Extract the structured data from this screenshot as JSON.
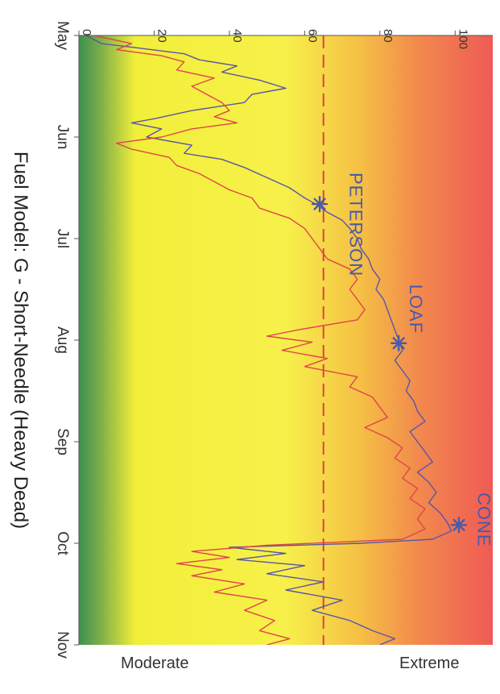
{
  "chart_data": {
    "type": "line",
    "title": "Fuel Model: G - Short-Needle (Heavy Dead)",
    "x_label": "",
    "y_label": "",
    "x_ticks": [
      "May",
      "Jun",
      "Jul",
      "Aug",
      "Sep",
      "Oct",
      "Nov"
    ],
    "y_ticks": [
      0,
      20,
      40,
      60,
      80,
      100
    ],
    "y_range": [
      0,
      110
    ],
    "x_range": [
      0,
      6
    ],
    "orientation": "rotated 90° clockwise (time runs top to bottom, value increases left to right)",
    "background_gradient": {
      "direction": "low-to-high",
      "stops": [
        {
          "value": 0,
          "color": "#3e8f4f"
        },
        {
          "value": 6,
          "color": "#7fb04a"
        },
        {
          "value": 15,
          "color": "#f2ef3a"
        },
        {
          "value": 55,
          "color": "#f7f04a"
        },
        {
          "value": 75,
          "color": "#f5bf45"
        },
        {
          "value": 90,
          "color": "#f28a4d"
        },
        {
          "value": 110,
          "color": "#ef5a55"
        }
      ]
    },
    "reference_line": {
      "value": 65,
      "style": "dashed",
      "color": "#d9453f"
    },
    "scale_labels": {
      "low": "Moderate",
      "high": "Extreme"
    },
    "series": [
      {
        "name": "",
        "color": "#5a55a6",
        "points": [
          [
            0.0,
            2
          ],
          [
            0.08,
            6
          ],
          [
            0.12,
            15
          ],
          [
            0.18,
            28
          ],
          [
            0.24,
            32
          ],
          [
            0.3,
            42
          ],
          [
            0.36,
            38
          ],
          [
            0.44,
            48
          ],
          [
            0.52,
            55
          ],
          [
            0.58,
            46
          ],
          [
            0.66,
            44
          ],
          [
            0.74,
            30
          ],
          [
            0.82,
            20
          ],
          [
            0.86,
            14
          ],
          [
            0.92,
            22
          ],
          [
            1.0,
            18
          ],
          [
            1.08,
            30
          ],
          [
            1.16,
            28
          ],
          [
            1.22,
            38
          ],
          [
            1.3,
            44
          ],
          [
            1.4,
            50
          ],
          [
            1.5,
            56
          ],
          [
            1.6,
            60
          ],
          [
            1.66,
            63
          ],
          [
            1.74,
            66
          ],
          [
            1.82,
            70
          ],
          [
            1.9,
            72
          ],
          [
            2.0,
            74
          ],
          [
            2.1,
            75
          ],
          [
            2.2,
            77
          ],
          [
            2.3,
            78
          ],
          [
            2.4,
            80
          ],
          [
            2.5,
            79
          ],
          [
            2.6,
            81
          ],
          [
            2.7,
            82
          ],
          [
            2.8,
            83
          ],
          [
            2.9,
            84
          ],
          [
            3.0,
            85
          ],
          [
            3.1,
            86
          ],
          [
            3.2,
            84
          ],
          [
            3.3,
            86
          ],
          [
            3.4,
            88
          ],
          [
            3.5,
            87
          ],
          [
            3.6,
            89
          ],
          [
            3.7,
            90
          ],
          [
            3.8,
            92
          ],
          [
            3.9,
            88
          ],
          [
            4.0,
            90
          ],
          [
            4.1,
            92
          ],
          [
            4.2,
            94
          ],
          [
            4.3,
            90
          ],
          [
            4.4,
            93
          ],
          [
            4.5,
            95
          ],
          [
            4.6,
            93
          ],
          [
            4.7,
            96
          ],
          [
            4.8,
            98
          ],
          [
            4.88,
            99
          ],
          [
            4.96,
            94
          ],
          [
            5.0,
            75
          ],
          [
            5.04,
            40
          ],
          [
            5.1,
            55
          ],
          [
            5.16,
            42
          ],
          [
            5.22,
            60
          ],
          [
            5.3,
            50
          ],
          [
            5.38,
            65
          ],
          [
            5.46,
            55
          ],
          [
            5.56,
            70
          ],
          [
            5.66,
            62
          ],
          [
            5.76,
            72
          ],
          [
            5.86,
            78
          ],
          [
            5.94,
            84
          ],
          [
            6.0,
            80
          ]
        ]
      },
      {
        "name": "",
        "color": "#e0454a",
        "points": [
          [
            0.0,
            4
          ],
          [
            0.08,
            14
          ],
          [
            0.14,
            10
          ],
          [
            0.2,
            22
          ],
          [
            0.26,
            28
          ],
          [
            0.34,
            26
          ],
          [
            0.42,
            36
          ],
          [
            0.5,
            30
          ],
          [
            0.58,
            34
          ],
          [
            0.66,
            38
          ],
          [
            0.74,
            40
          ],
          [
            0.8,
            36
          ],
          [
            0.86,
            42
          ],
          [
            0.92,
            30
          ],
          [
            1.0,
            22
          ],
          [
            1.06,
            10
          ],
          [
            1.12,
            14
          ],
          [
            1.2,
            24
          ],
          [
            1.28,
            26
          ],
          [
            1.36,
            32
          ],
          [
            1.44,
            36
          ],
          [
            1.52,
            40
          ],
          [
            1.6,
            46
          ],
          [
            1.7,
            48
          ],
          [
            1.8,
            56
          ],
          [
            1.9,
            60
          ],
          [
            2.0,
            62
          ],
          [
            2.1,
            64
          ],
          [
            2.2,
            66
          ],
          [
            2.3,
            72
          ],
          [
            2.4,
            74
          ],
          [
            2.5,
            72
          ],
          [
            2.6,
            74
          ],
          [
            2.7,
            76
          ],
          [
            2.8,
            74
          ],
          [
            2.9,
            58
          ],
          [
            2.96,
            50
          ],
          [
            3.02,
            62
          ],
          [
            3.1,
            54
          ],
          [
            3.18,
            66
          ],
          [
            3.26,
            60
          ],
          [
            3.36,
            74
          ],
          [
            3.46,
            72
          ],
          [
            3.56,
            78
          ],
          [
            3.66,
            80
          ],
          [
            3.76,
            82
          ],
          [
            3.86,
            76
          ],
          [
            3.96,
            82
          ],
          [
            4.06,
            86
          ],
          [
            4.16,
            84
          ],
          [
            4.26,
            88
          ],
          [
            4.36,
            86
          ],
          [
            4.46,
            90
          ],
          [
            4.56,
            88
          ],
          [
            4.66,
            92
          ],
          [
            4.76,
            90
          ],
          [
            4.86,
            92
          ],
          [
            4.96,
            86
          ],
          [
            5.02,
            50
          ],
          [
            5.08,
            30
          ],
          [
            5.14,
            40
          ],
          [
            5.2,
            26
          ],
          [
            5.26,
            38
          ],
          [
            5.32,
            30
          ],
          [
            5.4,
            44
          ],
          [
            5.48,
            36
          ],
          [
            5.56,
            50
          ],
          [
            5.66,
            44
          ],
          [
            5.76,
            52
          ],
          [
            5.86,
            48
          ],
          [
            5.94,
            56
          ],
          [
            6.0,
            50
          ]
        ]
      }
    ],
    "fire_markers": [
      {
        "label": "PETERSON",
        "x": 1.66,
        "y": 64,
        "label_x": 1.35,
        "label_y": 72,
        "color": "#4a5aa6"
      },
      {
        "label": "LOAF",
        "x": 3.03,
        "y": 85,
        "label_x": 2.45,
        "label_y": 88,
        "color": "#4a5aa6"
      },
      {
        "label": "CONE",
        "x": 4.82,
        "y": 101,
        "label_x": 4.5,
        "label_y": 106,
        "color": "#4a5aa6"
      }
    ]
  },
  "labels": {
    "title": "Fuel Model: G - Short-Needle (Heavy Dead)",
    "low": "Moderate",
    "high": "Extreme"
  }
}
